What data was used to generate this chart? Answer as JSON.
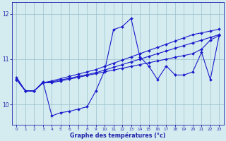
{
  "xlabel": "Graphe des températures (°c)",
  "bg_color": "#d4ecf0",
  "line_color": "#1a1acc",
  "grid_color": "#9bbfcc",
  "axis_color": "#2222aa",
  "ylim": [
    9.55,
    12.25
  ],
  "xlim": [
    -0.5,
    23.5
  ],
  "yticks": [
    10,
    11,
    12
  ],
  "xticks": [
    0,
    1,
    2,
    3,
    4,
    5,
    6,
    7,
    8,
    9,
    10,
    11,
    12,
    13,
    14,
    15,
    16,
    17,
    18,
    19,
    20,
    21,
    22,
    23
  ],
  "hours": [
    0,
    1,
    2,
    3,
    4,
    5,
    6,
    7,
    8,
    9,
    10,
    11,
    12,
    13,
    14,
    15,
    16,
    17,
    18,
    19,
    20,
    21,
    22,
    23
  ],
  "line_jagged": [
    10.6,
    10.3,
    10.3,
    10.5,
    9.75,
    9.82,
    9.85,
    9.9,
    9.95,
    10.3,
    10.75,
    11.65,
    11.72,
    11.9,
    11.05,
    10.85,
    10.55,
    10.85,
    10.65,
    10.65,
    10.72,
    11.15,
    10.55,
    11.52
  ],
  "line_a": [
    10.55,
    10.3,
    10.3,
    10.48,
    10.48,
    10.52,
    10.56,
    10.6,
    10.64,
    10.68,
    10.72,
    10.76,
    10.8,
    10.84,
    10.88,
    10.92,
    10.96,
    11.0,
    11.04,
    11.08,
    11.12,
    11.22,
    11.42,
    11.52
  ],
  "line_b": [
    10.55,
    10.3,
    10.3,
    10.48,
    10.5,
    10.54,
    10.58,
    10.62,
    10.66,
    10.7,
    10.76,
    10.82,
    10.88,
    10.94,
    11.0,
    11.06,
    11.12,
    11.18,
    11.24,
    11.3,
    11.36,
    11.42,
    11.48,
    11.54
  ],
  "line_c": [
    10.55,
    10.3,
    10.3,
    10.48,
    10.52,
    10.57,
    10.62,
    10.67,
    10.72,
    10.77,
    10.84,
    10.91,
    10.98,
    11.05,
    11.12,
    11.19,
    11.26,
    11.33,
    11.4,
    11.47,
    11.54,
    11.58,
    11.62,
    11.66
  ]
}
